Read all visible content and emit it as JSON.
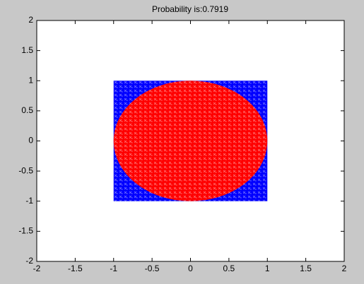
{
  "chart_data": {
    "type": "scatter",
    "title": "Probability is:0.7919",
    "xlim": [
      -2,
      2
    ],
    "ylim": [
      -2,
      2
    ],
    "xticks": [
      -2,
      -1.5,
      -1,
      -0.5,
      0,
      0.5,
      1,
      1.5,
      2
    ],
    "yticks": [
      -2,
      -1.5,
      -1,
      -0.5,
      0,
      0.5,
      1,
      1.5,
      2
    ],
    "grid": false,
    "shapes": [
      {
        "kind": "rect",
        "x": [
          -1,
          1
        ],
        "y": [
          -1,
          1
        ],
        "color": "#0000ff"
      },
      {
        "kind": "circle",
        "cx": 0,
        "cy": 0,
        "r": 1,
        "color": "#ff0000"
      }
    ]
  }
}
